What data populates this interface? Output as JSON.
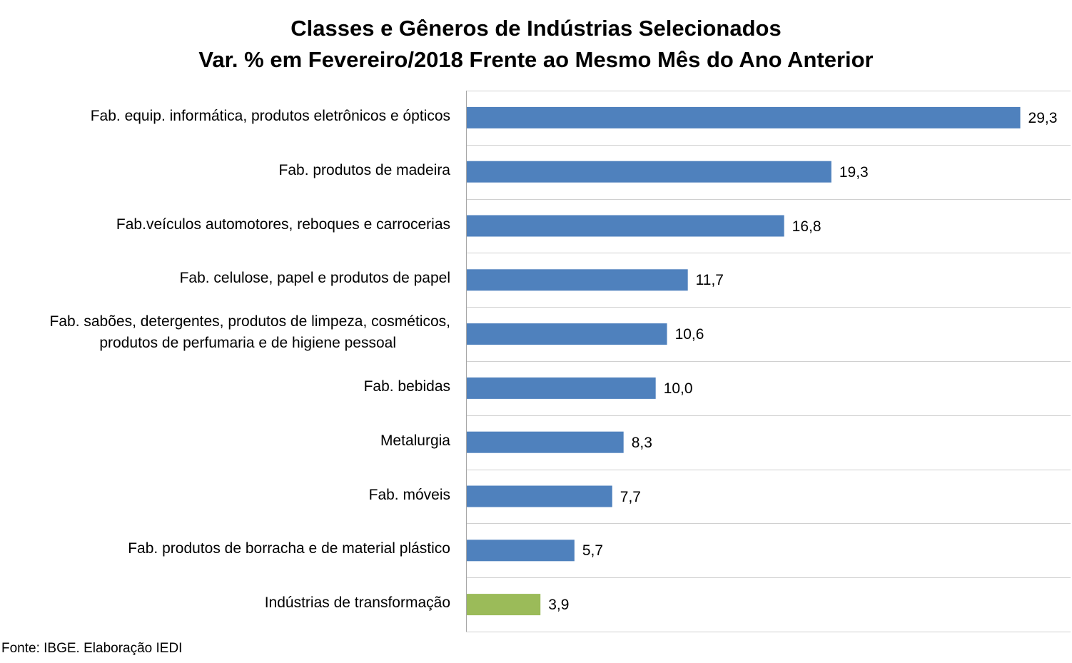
{
  "chart_data": {
    "type": "bar",
    "orientation": "horizontal",
    "title_line1": "Classes e Gêneros de Indústrias Selecionados",
    "title_line2": "Var. % em Fevereiro/2018 Frente ao Mesmo Mês do Ano Anterior",
    "categories": [
      "Fab. equip. informática, produtos eletrônicos e ópticos",
      "Fab. produtos de madeira",
      "Fab.veículos automotores, reboques e carrocerias",
      "Fab. celulose, papel e produtos de papel",
      "Fab. sabões, detergentes, produtos de limpeza, cosméticos,\nprodutos de perfumaria e de higiene pessoal",
      "Fab. bebidas",
      "Metalurgia",
      "Fab. móveis",
      "Fab. produtos de borracha e de material plástico",
      "Indústrias de transformação"
    ],
    "values": [
      29.3,
      19.3,
      16.8,
      11.7,
      10.6,
      10.0,
      8.3,
      7.7,
      5.7,
      3.9
    ],
    "value_labels": [
      "29,3",
      "19,3",
      "16,8",
      "11,7",
      "10,6",
      "10,0",
      "8,3",
      "7,7",
      "5,7",
      "3,9"
    ],
    "bar_colors": [
      "#4F81BD",
      "#4F81BD",
      "#4F81BD",
      "#4F81BD",
      "#4F81BD",
      "#4F81BD",
      "#4F81BD",
      "#4F81BD",
      "#4F81BD",
      "#9BBB59"
    ],
    "xlim": [
      0,
      32
    ],
    "grid": "horizontal separators",
    "legend": "none"
  },
  "source_note": "Fonte: IBGE. Elaboração IEDI"
}
